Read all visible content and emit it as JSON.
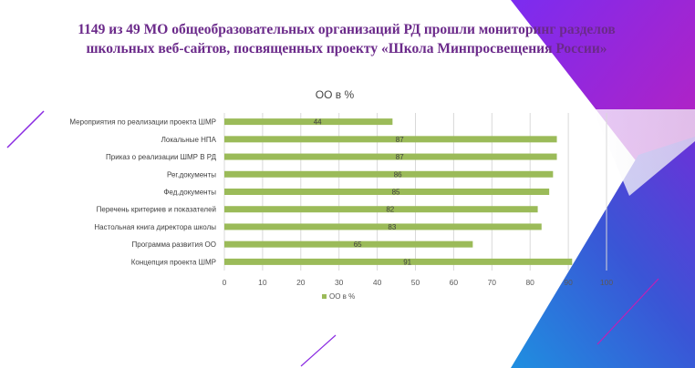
{
  "slide": {
    "title_line1": "1149 из 49 МО общеобразовательных организаций РД прошли мониторинг разделов",
    "title_line2": "школьных веб-сайтов, посвященных проекту «Школа Минпросвещения России»",
    "colors": {
      "background": "#ffffff",
      "title": "#6b2a8a",
      "accent_purple": "#8a2be2",
      "accent_magenta": "#c21fb5",
      "accent_blue": "#1e6fd9"
    }
  },
  "chart_data": {
    "type": "bar",
    "orientation": "horizontal",
    "title": "ОО в %",
    "categories": [
      "Мероприятия по реализации проекта ШМР",
      "Локальные НПА",
      "Приказ о реализации ШМР В РД",
      "Рег.документы",
      "Фед.документы",
      "Перечень критериев и показателей",
      "Настольная книга директора школы",
      "Программа развития ОО",
      "Концепция проекта ШМР"
    ],
    "series": [
      {
        "name": "ОО в %",
        "values": [
          44,
          87,
          87,
          86,
          85,
          82,
          83,
          65,
          91
        ],
        "color": "#9bbb59"
      }
    ],
    "xlim": [
      0,
      100
    ],
    "x_ticks": [
      0,
      10,
      20,
      30,
      40,
      50,
      60,
      70,
      80,
      90,
      100
    ],
    "grid": true,
    "data_labels": true,
    "legend_position": "bottom"
  }
}
